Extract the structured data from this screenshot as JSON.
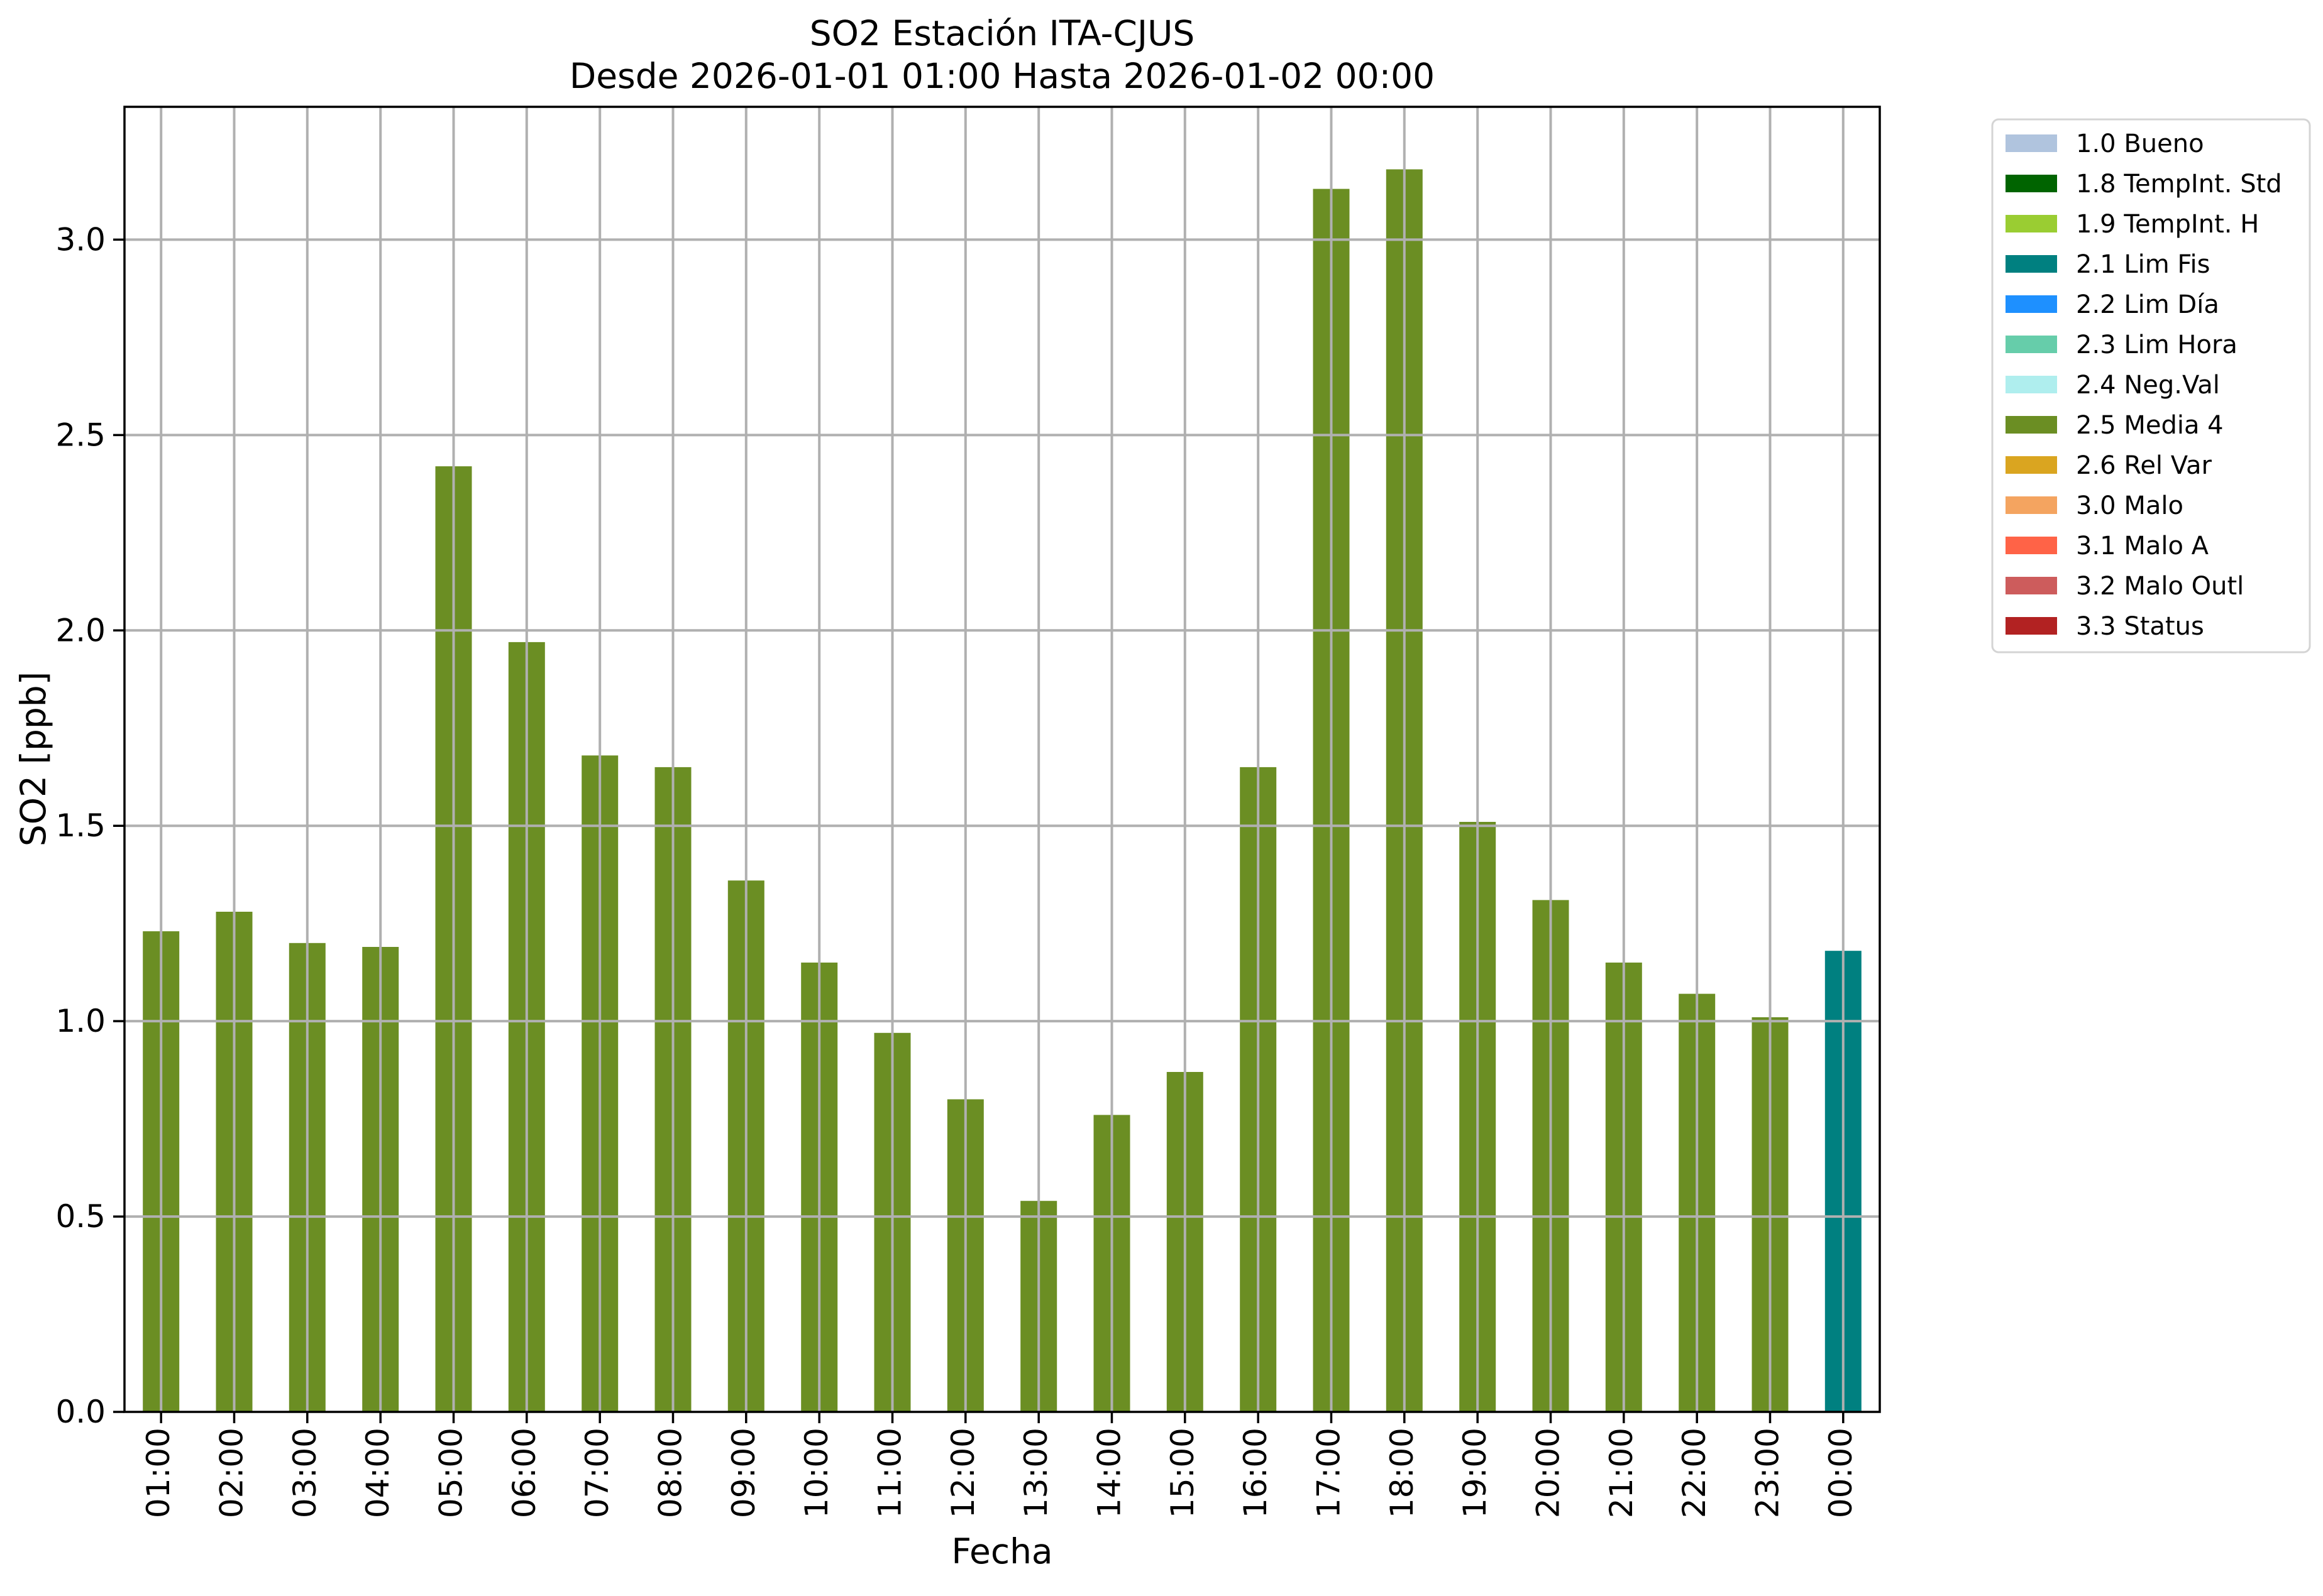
{
  "figure": {
    "background": "#ffffff"
  },
  "chart_data": {
    "type": "bar",
    "title": "SO2 Estación ITA-CJUS",
    "subtitle": "Desde 2026-01-01 01:00 Hasta 2026-01-02 00:00",
    "xlabel": "Fecha",
    "ylabel": "SO2 [ppb]",
    "categories": [
      "01:00",
      "02:00",
      "03:00",
      "04:00",
      "05:00",
      "06:00",
      "07:00",
      "08:00",
      "09:00",
      "10:00",
      "11:00",
      "12:00",
      "13:00",
      "14:00",
      "15:00",
      "16:00",
      "17:00",
      "18:00",
      "19:00",
      "20:00",
      "21:00",
      "22:00",
      "23:00",
      "00:00"
    ],
    "values": [
      1.23,
      1.28,
      1.2,
      1.19,
      2.42,
      1.97,
      1.68,
      1.65,
      1.36,
      1.15,
      0.97,
      0.8,
      0.54,
      0.76,
      0.87,
      1.65,
      3.13,
      3.18,
      1.51,
      1.31,
      1.15,
      1.07,
      1.01,
      1.18
    ],
    "bar_flags": [
      "2.5 Media 4",
      "2.5 Media 4",
      "2.5 Media 4",
      "2.5 Media 4",
      "2.5 Media 4",
      "2.5 Media 4",
      "2.5 Media 4",
      "2.5 Media 4",
      "2.5 Media 4",
      "2.5 Media 4",
      "2.5 Media 4",
      "2.5 Media 4",
      "2.5 Media 4",
      "2.5 Media 4",
      "2.5 Media 4",
      "2.5 Media 4",
      "2.5 Media 4",
      "2.5 Media 4",
      "2.5 Media 4",
      "2.5 Media 4",
      "2.5 Media 4",
      "2.5 Media 4",
      "2.5 Media 4",
      "2.1 Lim Fis"
    ],
    "ylim": [
      0,
      3.34
    ],
    "yticks": [
      0,
      0.5,
      1.0,
      1.5,
      2.0,
      2.5,
      3.0
    ],
    "ytick_labels": [
      "0.0",
      "0.5",
      "1.0",
      "1.5",
      "2.0",
      "2.5",
      "3.0"
    ],
    "grid": true,
    "grid_color": "#b0b0b0",
    "legend_position": "outside-upper-right",
    "legend": [
      {
        "label": "1.0 Bueno",
        "color": "#b0c4de"
      },
      {
        "label": "1.8 TempInt. Std",
        "color": "#006400"
      },
      {
        "label": "1.9 TempInt. H",
        "color": "#9acd32"
      },
      {
        "label": "2.1 Lim Fis",
        "color": "#008080"
      },
      {
        "label": "2.2 Lim Día",
        "color": "#1e90ff"
      },
      {
        "label": "2.3 Lim Hora",
        "color": "#66cdaa"
      },
      {
        "label": "2.4 Neg.Val",
        "color": "#afeeee"
      },
      {
        "label": "2.5 Media 4",
        "color": "#6b8e23"
      },
      {
        "label": "2.6 Rel Var",
        "color": "#daa520"
      },
      {
        "label": "3.0 Malo",
        "color": "#f4a460"
      },
      {
        "label": "3.1 Malo A",
        "color": "#ff6347"
      },
      {
        "label": "3.2 Malo Outl",
        "color": "#cd5c5c"
      },
      {
        "label": "3.3 Status",
        "color": "#b22222"
      }
    ]
  }
}
